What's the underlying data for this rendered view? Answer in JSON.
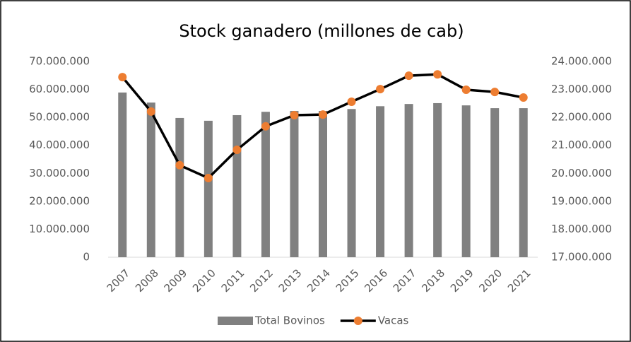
{
  "chart_data": {
    "type": "bar-line",
    "title": "Stock ganadero (millones de cab)",
    "categories": [
      "2007",
      "2008",
      "2009",
      "2010",
      "2011",
      "2012",
      "2013",
      "2014",
      "2015",
      "2016",
      "2017",
      "2018",
      "2019",
      "2020",
      "2021"
    ],
    "series": [
      {
        "name": "Total Bovinos",
        "type": "bar",
        "color": "#808080",
        "values": [
          58900000,
          55300000,
          49800000,
          48800000,
          50800000,
          52000000,
          52300000,
          52300000,
          53000000,
          54000000,
          54800000,
          55100000,
          54300000,
          53300000,
          53300000
        ]
      },
      {
        "name": "Vacas",
        "type": "line",
        "axis": "y2",
        "color": "#000000",
        "marker_color": "#ed7d31",
        "values": [
          23440000,
          22210000,
          20290000,
          19830000,
          20840000,
          21680000,
          22080000,
          22100000,
          22560000,
          23010000,
          23490000,
          23540000,
          22990000,
          22910000,
          22710000
        ]
      }
    ],
    "ylim": [
      0,
      70000000
    ],
    "yticks": [
      0,
      {
        "value": 10000000,
        "label": "10.000.000"
      },
      {
        "value": 20000000,
        "label": "20.000.000"
      },
      {
        "value": 30000000,
        "label": "30.000.000"
      },
      {
        "value": 40000000,
        "label": "40.000.000"
      },
      {
        "value": 50000000,
        "label": "50.000.000"
      },
      {
        "value": 60000000,
        "label": "60.000.000"
      },
      {
        "value": 70000000,
        "label": "70.000.000"
      }
    ],
    "y2lim": [
      17000000,
      24000000
    ],
    "y2ticks": [
      {
        "value": 17000000,
        "label": "17.000.000"
      },
      {
        "value": 18000000,
        "label": "18.000.000"
      },
      {
        "value": 19000000,
        "label": "19.000.000"
      },
      {
        "value": 20000000,
        "label": "20.000.000"
      },
      {
        "value": 21000000,
        "label": "21.000.000"
      },
      {
        "value": 22000000,
        "label": "22.000.000"
      },
      {
        "value": 23000000,
        "label": "23.000.000"
      },
      {
        "value": 24000000,
        "label": "24.000.000"
      }
    ],
    "legend": "bottom"
  }
}
